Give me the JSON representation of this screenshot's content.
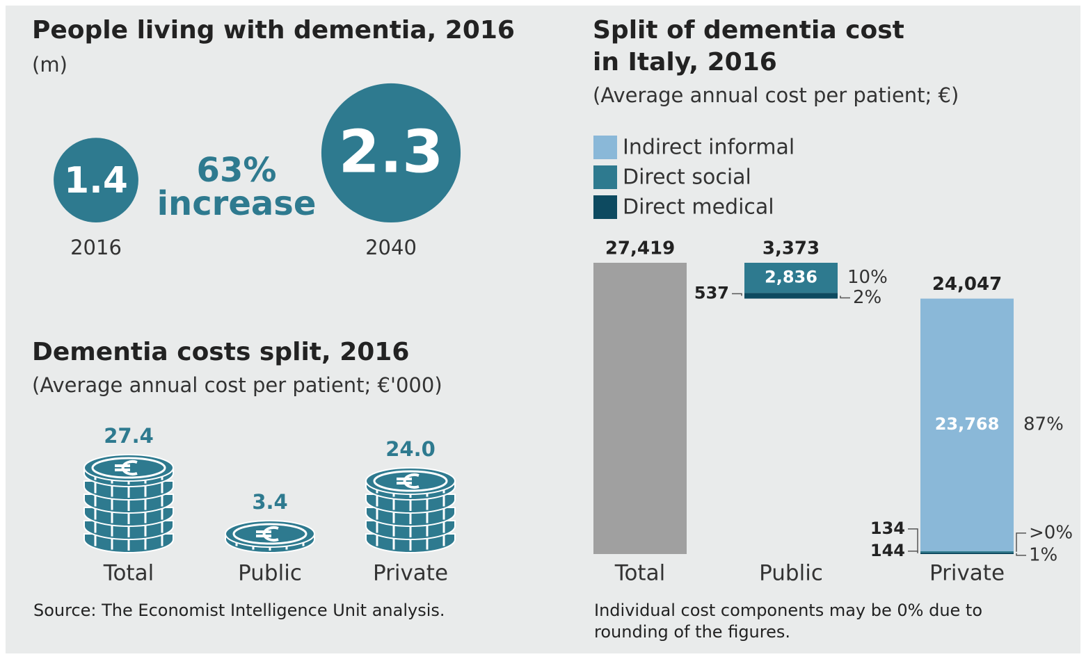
{
  "chart_data": [
    {
      "type": "bubble",
      "title": "People living with dementia, 2016",
      "subtitle": "(m)",
      "categories": [
        "2016",
        "2040"
      ],
      "values": [
        1.4,
        2.3
      ],
      "color": "#2e7a8f",
      "annotation": [
        "63%",
        "increase"
      ]
    },
    {
      "type": "coins",
      "title": "Dementia costs split, 2016",
      "subtitle": "(Average annual cost per patient; €'000)",
      "categories": [
        "Total",
        "Public",
        "Private"
      ],
      "values": [
        27.4,
        3.4,
        24.0
      ],
      "value_labels": [
        "27.4",
        "3.4",
        "24.0"
      ],
      "color": "#2e7a8f",
      "source": "Source: The Economist Intelligence Unit analysis."
    },
    {
      "type": "waterfall",
      "title": [
        "Split of dementia cost",
        "in Italy, 2016"
      ],
      "subtitle": "(Average annual cost per patient; €)",
      "categories": [
        "Total",
        "Public",
        "Private"
      ],
      "totals": [
        27419,
        3373,
        24047
      ],
      "total_labels": [
        "27,419",
        "3,373",
        "24,047"
      ],
      "total_color": "#a0a0a0",
      "series": [
        {
          "name": "Indirect informal",
          "color": "#8ab8d8",
          "values": [
            null,
            null,
            23768
          ],
          "value_labels": [
            null,
            null,
            "23,768"
          ],
          "share_labels": [
            null,
            null,
            "87%"
          ]
        },
        {
          "name": "Direct social",
          "color": "#2e7a8f",
          "values": [
            null,
            2836,
            134
          ],
          "value_labels": [
            null,
            "2,836",
            "134"
          ],
          "share_labels": [
            null,
            "10%",
            ">0%"
          ]
        },
        {
          "name": "Direct medical",
          "color": "#0d4a60",
          "values": [
            null,
            537,
            144
          ],
          "value_labels": [
            null,
            "537",
            "144"
          ],
          "share_labels": [
            null,
            "2%",
            "1%"
          ]
        }
      ],
      "note": [
        "Individual cost components may be 0% due to",
        "rounding of the figures."
      ]
    }
  ]
}
